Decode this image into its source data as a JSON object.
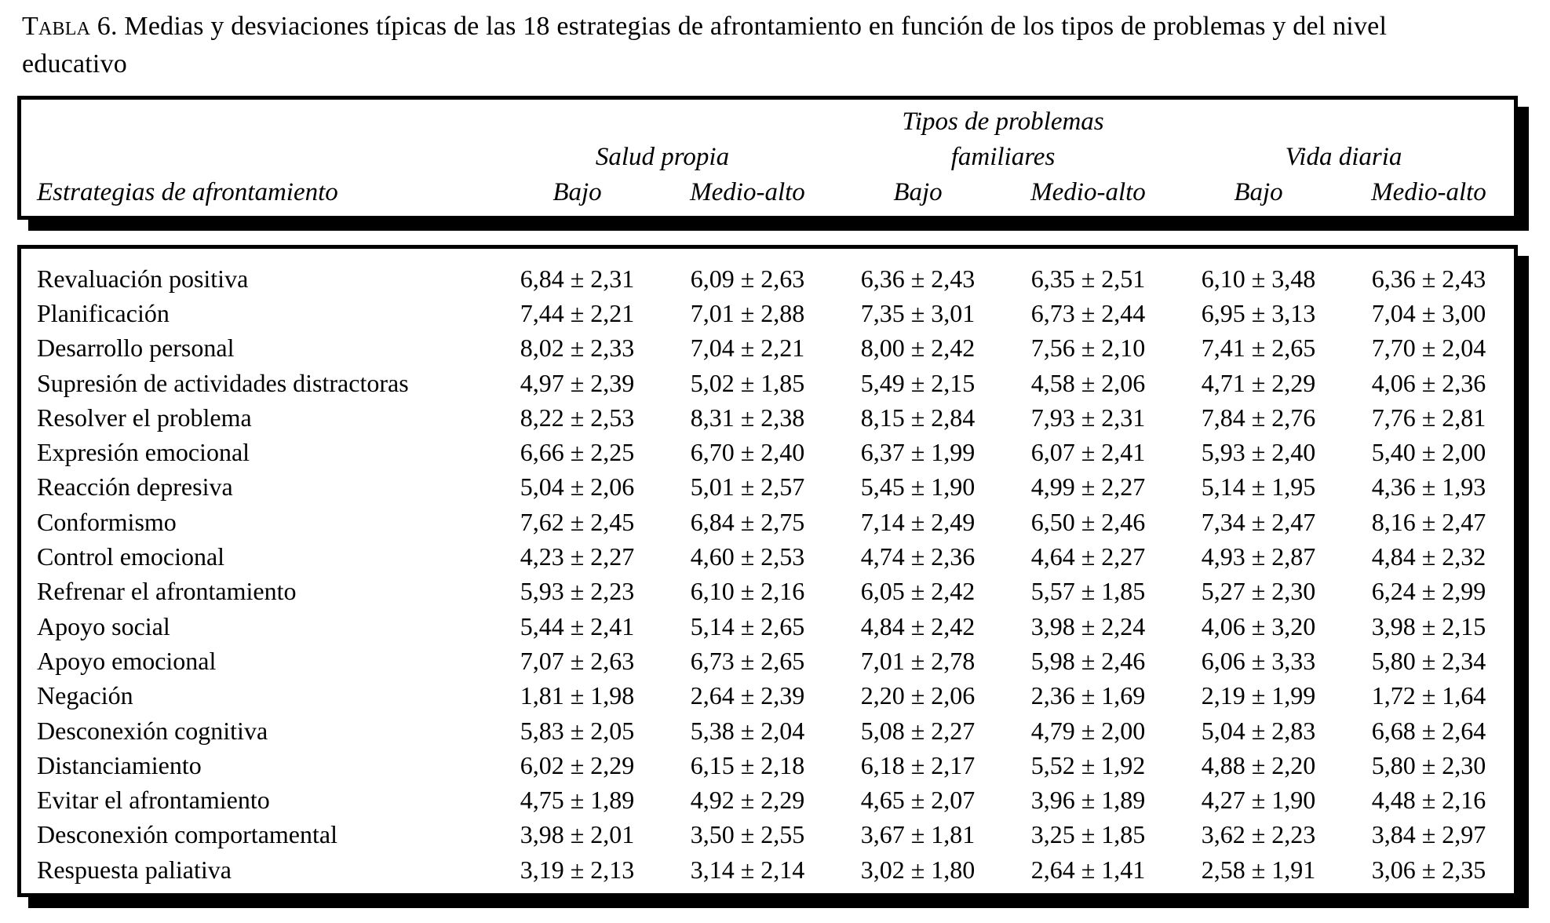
{
  "title": {
    "prefix": "Tabla",
    "text": " 6. Medias y desviaciones típicas de las 18 estrategias de afrontamiento en función de los tipos de problemas y del nivel educativo"
  },
  "header": {
    "row_label_column": "Estrategias de afrontamiento",
    "group_middle_line1": "Tipos de problemas",
    "groups": {
      "salud": "Salud propia",
      "familiares": "familiares",
      "vida": "Vida diaria"
    },
    "subheaders": [
      "Bajo",
      "Medio-alto",
      "Bajo",
      "Medio-alto",
      "Bajo",
      "Medio-alto"
    ]
  },
  "table": {
    "rows": [
      {
        "label": "Revaluación positiva",
        "values": [
          "6,84 ± 2,31",
          "6,09 ± 2,63",
          "6,36 ± 2,43",
          "6,35 ± 2,51",
          "6,10 ± 3,48",
          "6,36 ± 2,43"
        ]
      },
      {
        "label": "Planificación",
        "values": [
          "7,44 ± 2,21",
          "7,01 ± 2,88",
          "7,35 ± 3,01",
          "6,73 ± 2,44",
          "6,95 ± 3,13",
          "7,04 ± 3,00"
        ]
      },
      {
        "label": "Desarrollo personal",
        "values": [
          "8,02 ± 2,33",
          "7,04 ± 2,21",
          "8,00 ± 2,42",
          "7,56 ± 2,10",
          "7,41 ± 2,65",
          "7,70 ± 2,04"
        ]
      },
      {
        "label": "Supresión de actividades distractoras",
        "values": [
          "4,97 ± 2,39",
          "5,02 ± 1,85",
          "5,49 ± 2,15",
          "4,58 ± 2,06",
          "4,71 ± 2,29",
          "4,06 ± 2,36"
        ]
      },
      {
        "label": "Resolver el problema",
        "values": [
          "8,22 ± 2,53",
          "8,31 ± 2,38",
          "8,15 ± 2,84",
          "7,93 ± 2,31",
          "7,84 ± 2,76",
          "7,76 ± 2,81"
        ]
      },
      {
        "label": "Expresión emocional",
        "values": [
          "6,66 ± 2,25",
          "6,70 ± 2,40",
          "6,37 ± 1,99",
          "6,07 ± 2,41",
          "5,93 ± 2,40",
          "5,40 ± 2,00"
        ]
      },
      {
        "label": "Reacción depresiva",
        "values": [
          "5,04 ± 2,06",
          "5,01 ± 2,57",
          "5,45 ± 1,90",
          "4,99 ± 2,27",
          "5,14 ± 1,95",
          "4,36 ± 1,93"
        ]
      },
      {
        "label": "Conformismo",
        "values": [
          "7,62 ± 2,45",
          "6,84 ± 2,75",
          "7,14 ± 2,49",
          "6,50 ± 2,46",
          "7,34 ± 2,47",
          "8,16 ± 2,47"
        ]
      },
      {
        "label": "Control emocional",
        "values": [
          "4,23 ± 2,27",
          "4,60 ± 2,53",
          "4,74 ± 2,36",
          "4,64 ± 2,27",
          "4,93 ± 2,87",
          "4,84 ± 2,32"
        ]
      },
      {
        "label": "Refrenar el afrontamiento",
        "values": [
          "5,93 ± 2,23",
          "6,10 ± 2,16",
          "6,05 ± 2,42",
          "5,57 ± 1,85",
          "5,27 ± 2,30",
          "6,24 ± 2,99"
        ]
      },
      {
        "label": "Apoyo social",
        "values": [
          "5,44 ± 2,41",
          "5,14 ± 2,65",
          "4,84 ± 2,42",
          "3,98 ± 2,24",
          "4,06 ± 3,20",
          "3,98 ± 2,15"
        ]
      },
      {
        "label": "Apoyo emocional",
        "values": [
          "7,07 ± 2,63",
          "6,73 ± 2,65",
          "7,01 ± 2,78",
          "5,98 ± 2,46",
          "6,06 ± 3,33",
          "5,80 ± 2,34"
        ]
      },
      {
        "label": "Negación",
        "values": [
          "1,81 ± 1,98",
          "2,64 ± 2,39",
          "2,20 ± 2,06",
          "2,36 ± 1,69",
          "2,19 ± 1,99",
          "1,72 ± 1,64"
        ]
      },
      {
        "label": "Desconexión cognitiva",
        "values": [
          "5,83 ± 2,05",
          "5,38 ± 2,04",
          "5,08 ± 2,27",
          "4,79 ± 2,00",
          "5,04 ± 2,83",
          "6,68 ± 2,64"
        ]
      },
      {
        "label": "Distanciamiento",
        "values": [
          "6,02 ± 2,29",
          "6,15 ± 2,18",
          "6,18 ± 2,17",
          "5,52 ± 1,92",
          "4,88 ± 2,20",
          "5,80 ± 2,30"
        ]
      },
      {
        "label": "Evitar el afrontamiento",
        "values": [
          "4,75 ± 1,89",
          "4,92 ± 2,29",
          "4,65 ± 2,07",
          "3,96 ± 1,89",
          "4,27 ± 1,90",
          "4,48 ± 2,16"
        ]
      },
      {
        "label": "Desconexión comportamental",
        "values": [
          "3,98 ± 2,01",
          "3,50 ± 2,55",
          "3,67 ± 1,81",
          "3,25 ± 1,85",
          "3,62 ± 2,23",
          "3,84 ± 2,97"
        ]
      },
      {
        "label": "Respuesta paliativa",
        "values": [
          "3,19 ± 2,13",
          "3,14 ± 2,14",
          "3,02 ± 1,80",
          "2,64 ± 1,41",
          "2,58 ± 1,91",
          "3,06 ± 2,35"
        ]
      }
    ]
  },
  "colors": {
    "text": "#000000",
    "background": "#ffffff",
    "border": "#000000",
    "shadow": "#000000"
  }
}
